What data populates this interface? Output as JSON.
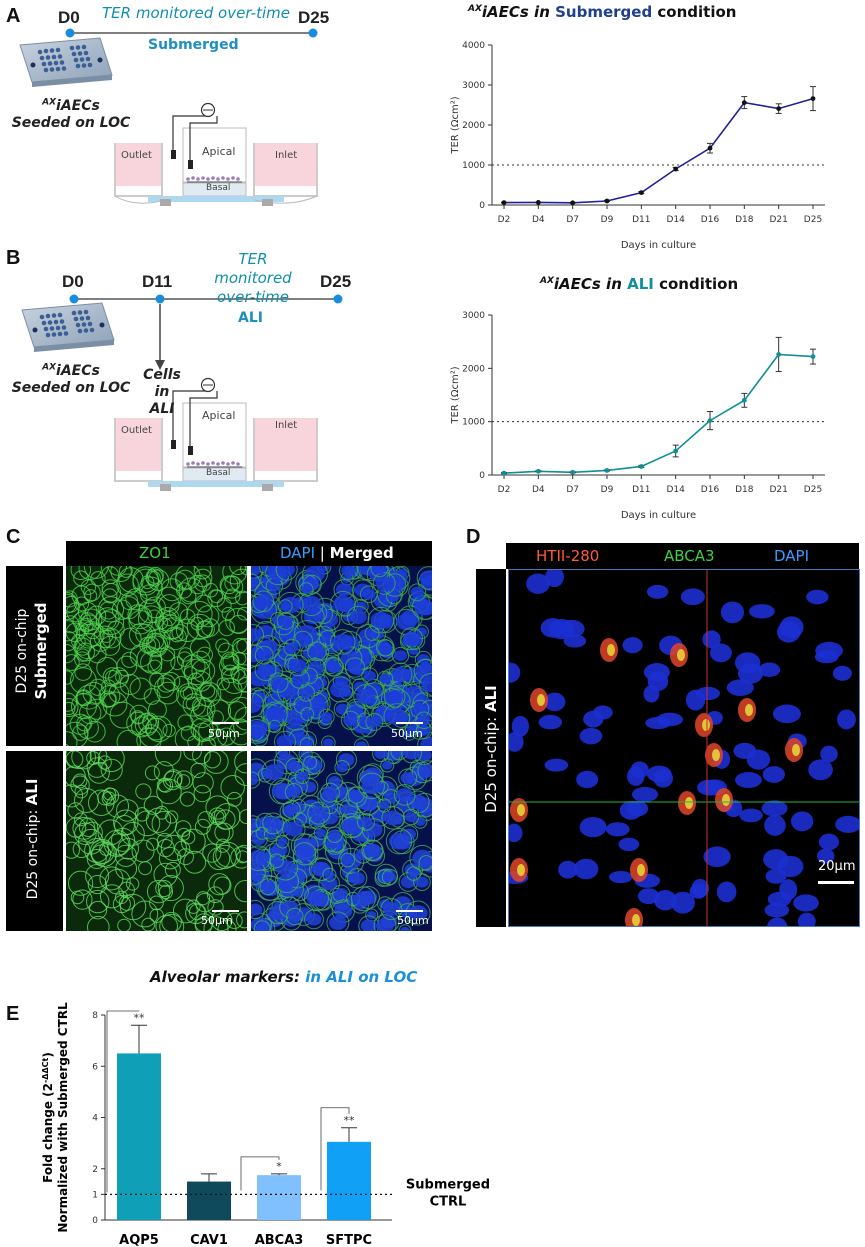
{
  "panels": {
    "A": "A",
    "B": "B",
    "C": "C",
    "D": "D",
    "E": "E"
  },
  "schematicA": {
    "d_start": "D0",
    "d_end": "D25",
    "monitor": "TER monitored over-time",
    "condition": "Submerged",
    "cells_line1": "AX",
    "cells_line1b": "iAECs",
    "cells_line2": "Seeded on LOC",
    "outlet": "Outlet",
    "apical": "Apical",
    "basal": "Basal",
    "inlet": "Inlet",
    "valve": "v"
  },
  "schematicB": {
    "d_start": "D0",
    "d_mid": "D11",
    "d_end": "D25",
    "monitor_1": "TER monitored",
    "monitor_2": "over-time",
    "condition": "ALI",
    "cells_sup": "AX",
    "cells_name": "iAECs",
    "cells_line2": "Seeded on LOC",
    "cells_ali_1": "Cells in",
    "cells_ali_2": "ALI",
    "outlet": "Outlet",
    "apical": "Apical",
    "basal": "Basal",
    "inlet": "Inlet"
  },
  "chartA_title": {
    "sup": "AX",
    "pre": "iAECs  in ",
    "cond": "Submerged",
    "post": " condition"
  },
  "chartB_title": {
    "sup": "AX",
    "pre": "iAECs  in ",
    "cond": "ALI",
    "post": " condition"
  },
  "chart_data": [
    {
      "type": "line",
      "categories": [
        "D2",
        "D4",
        "D7",
        "D9",
        "D11",
        "D14",
        "D16",
        "D18",
        "D21",
        "D25"
      ],
      "series": [
        {
          "values": [
            60,
            65,
            55,
            100,
            310,
            900,
            1420,
            2560,
            2410,
            2660
          ],
          "errors": [
            10,
            10,
            10,
            15,
            25,
            40,
            120,
            150,
            120,
            300
          ],
          "color": "#1f1fa0"
        }
      ],
      "ylabel": "TER (Ωcm²)",
      "xlabel": "Days in culture",
      "ylim": [
        0,
        4000
      ],
      "yticks": [
        "0",
        "1000",
        "2000",
        "3000",
        "4000"
      ],
      "reference_line": 1000
    },
    {
      "type": "line",
      "categories": [
        "D2",
        "D4",
        "D7",
        "D9",
        "D11",
        "D14",
        "D16",
        "D18",
        "D21",
        "D25"
      ],
      "series": [
        {
          "values": [
            35,
            70,
            50,
            85,
            160,
            450,
            1020,
            1400,
            2260,
            2220
          ],
          "errors": [
            10,
            10,
            10,
            10,
            20,
            110,
            170,
            130,
            320,
            140
          ],
          "color": "#0f8f96"
        }
      ],
      "ylabel": "TER (Ωcm²)",
      "xlabel": "Days in culture",
      "ylim": [
        0,
        3000
      ],
      "yticks": [
        "0",
        "1000",
        "2000",
        "3000"
      ],
      "reference_line": 1000
    },
    {
      "type": "bar",
      "title": "Alveolar markers: in ALI on LOC",
      "categories": [
        "AQP5",
        "CAV1",
        "ABCA3",
        "SFTPC"
      ],
      "values": [
        6.5,
        1.5,
        1.75,
        3.05
      ],
      "errors": [
        1.1,
        0.3,
        0.05,
        0.55
      ],
      "colors": [
        "#0fa0b8",
        "#0f4a5c",
        "#80c0ff",
        "#10a0f5"
      ],
      "significance": [
        "**",
        "",
        "*",
        "**"
      ],
      "ylabel_1": "Fold change (2",
      "ylabel_sup": "-ΔΔCt",
      "ylabel_1b": ")",
      "ylabel_2": "Normalized with Submerged CTRL",
      "ylim": [
        0,
        8
      ],
      "yticks": [
        "0",
        "1",
        "2",
        "4",
        "6",
        "8"
      ],
      "reference_line": 1,
      "reference_label_1": "Submerged",
      "reference_label_2": "CTRL"
    }
  ],
  "panelC": {
    "hdr_zo1": "ZO1",
    "hdr_dapi": "DAPI",
    "hdr_sep": " | ",
    "hdr_merged": "Merged",
    "row1_line1": "D25 on-chip",
    "row1_line2": "Submerged",
    "row2_pre": "D25 on-chip: ",
    "row2_bold": "ALI",
    "scale": "50µm"
  },
  "panelD": {
    "hdr_htii": "HTII-280",
    "hdr_abca3": "ABCA3",
    "hdr_dapi": "DAPI",
    "side_pre": "D25 on-chip: ",
    "side_bold": "ALI",
    "scale": "20µm"
  }
}
